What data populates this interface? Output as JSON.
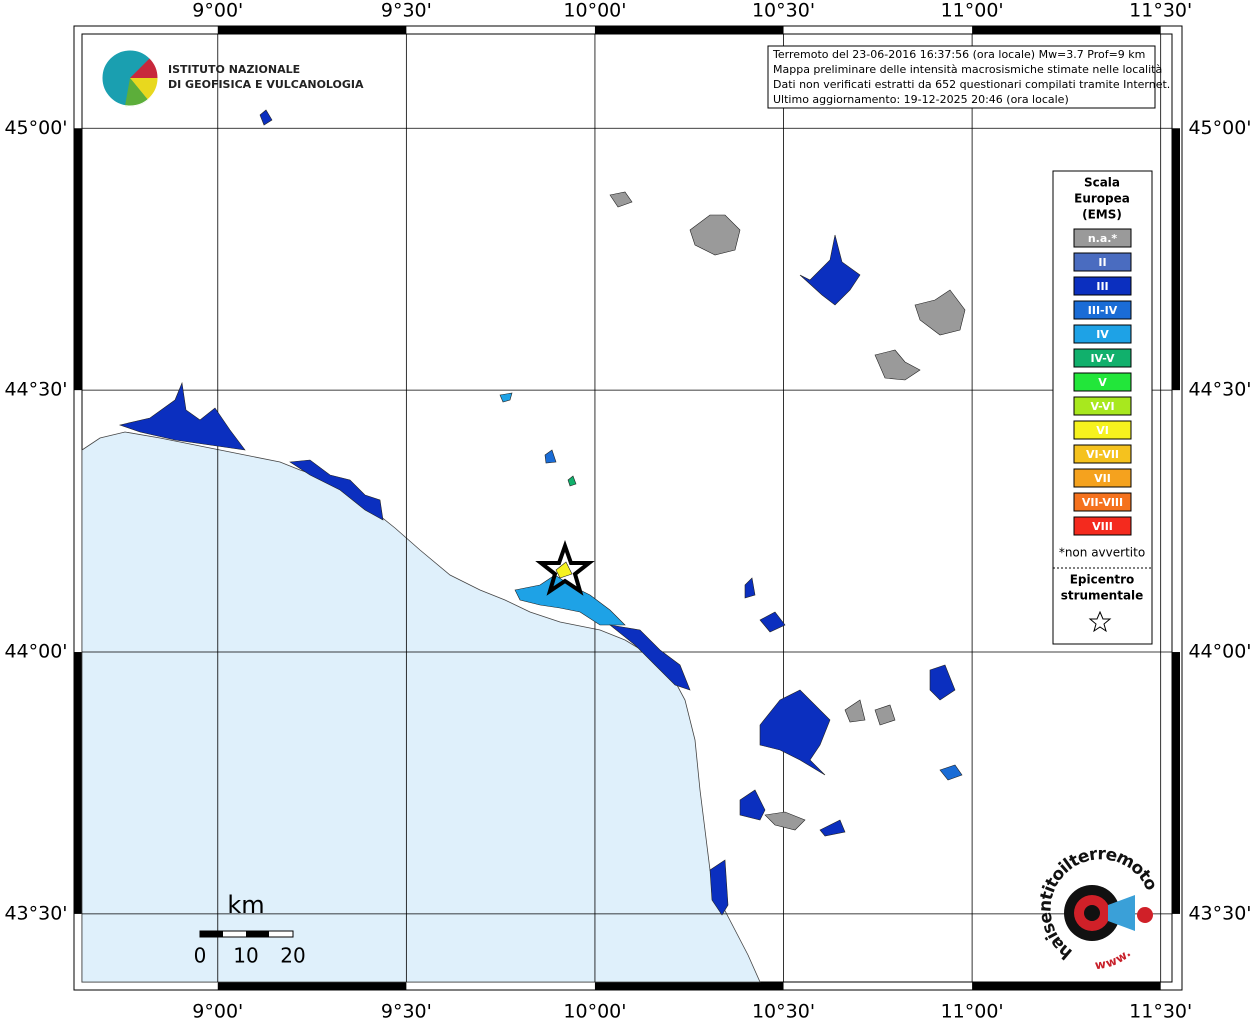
{
  "map": {
    "lonlim": [
      8.64,
      11.53
    ],
    "latlim": [
      43.37,
      45.18
    ],
    "lon_ticks": [
      {
        "value": 9.0,
        "label": "9°00'"
      },
      {
        "value": 9.5,
        "label": "9°30'"
      },
      {
        "value": 10.0,
        "label": "10°00'"
      },
      {
        "value": 10.5,
        "label": "10°30'"
      },
      {
        "value": 11.0,
        "label": "11°00'"
      },
      {
        "value": 11.5,
        "label": "11°30'"
      }
    ],
    "lat_ticks": [
      {
        "value": 45.0,
        "label": "45°00'"
      },
      {
        "value": 44.5,
        "label": "44°30'"
      },
      {
        "value": 44.0,
        "label": "44°00'"
      },
      {
        "value": 43.5,
        "label": "43°30'"
      }
    ],
    "sea_color": "#dff0fb"
  },
  "info_box": [
    "Terremoto del 23-06-2016 16:37:56 (ora locale) Mw=3.7 Prof=9 km",
    "Mappa preliminare delle intensità macrosismiche stimate nelle località",
    "Dati non verificati estratti da 652 questionari compilati tramite Internet.",
    "Ultimo aggiornamento: 19-12-2025 20:46 (ora locale)"
  ],
  "logo_ingv": [
    "ISTITUTO NAZIONALE",
    "DI GEOFISICA E VULCANOLOGIA"
  ],
  "logo_hsit": {
    "text": "haisentitoilterremoto.it",
    "www": "www."
  },
  "legend": {
    "title": [
      "Scala",
      "Europea",
      "(EMS)"
    ],
    "items": [
      {
        "label": "n.a.*",
        "color": "#9a9a9a"
      },
      {
        "label": "II",
        "color": "#4a6cc0"
      },
      {
        "label": "III",
        "color": "#0b2fbf"
      },
      {
        "label": "III-IV",
        "color": "#1a6cd6"
      },
      {
        "label": "IV",
        "color": "#1ea2e6"
      },
      {
        "label": "IV-V",
        "color": "#11b06c"
      },
      {
        "label": "V",
        "color": "#22e63a"
      },
      {
        "label": "V-VI",
        "color": "#a8e81e"
      },
      {
        "label": "VI",
        "color": "#f6f21e"
      },
      {
        "label": "VI-VII",
        "color": "#f5c21e"
      },
      {
        "label": "VII",
        "color": "#f5a21e"
      },
      {
        "label": "VII-VIII",
        "color": "#f5721e"
      },
      {
        "label": "VIII",
        "color": "#f42a1e"
      }
    ],
    "note": "*non avvertito",
    "epicenter": [
      "Epicentro",
      "strumentale"
    ]
  },
  "scale_bar": {
    "unit": "km",
    "labels": [
      0,
      10,
      20
    ]
  }
}
